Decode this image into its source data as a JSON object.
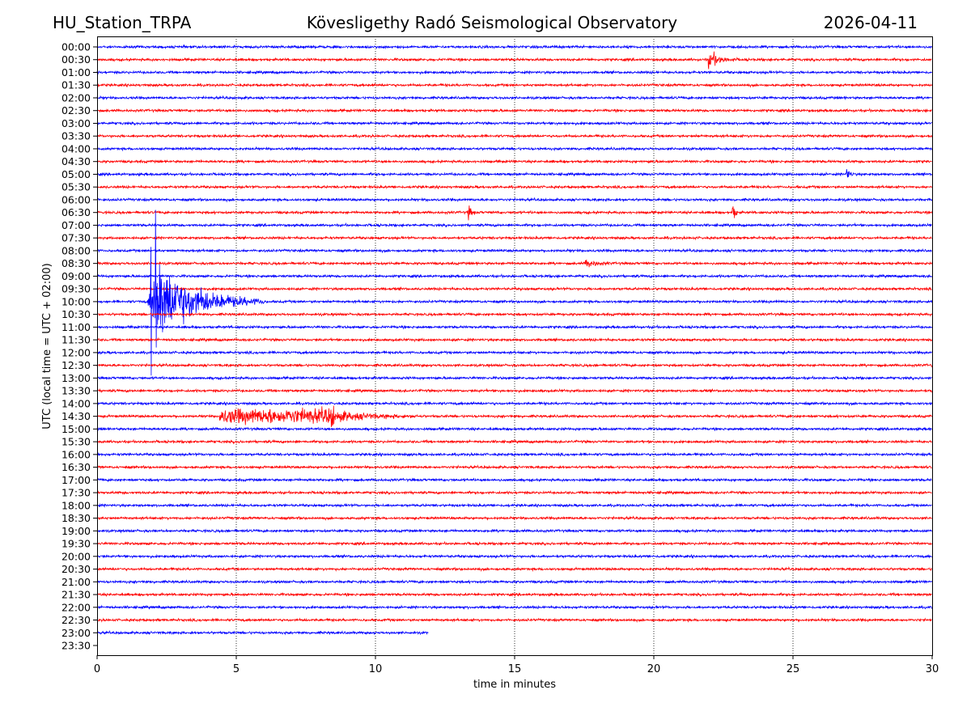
{
  "header": {
    "station": "HU_Station_TRPA",
    "observatory": "Kövesligethy Radó Seismological Observatory",
    "date": "2026-04-11"
  },
  "chart_data": {
    "type": "line",
    "subtype": "helicorder",
    "title": "Kövesligethy Radó Seismological Observatory",
    "xlabel": "time in minutes",
    "ylabel": "UTC (local time = UTC + 02:00)",
    "xlim": [
      0,
      30
    ],
    "xticks": [
      "0",
      "5",
      "10",
      "15",
      "20",
      "25",
      "30"
    ],
    "grid": "vertical dotted at every 5 minutes",
    "colors": [
      "#0000ff",
      "#ff0000"
    ],
    "rows": [
      "00:00",
      "00:30",
      "01:00",
      "01:30",
      "02:00",
      "02:30",
      "03:00",
      "03:30",
      "04:00",
      "04:30",
      "05:00",
      "05:30",
      "06:00",
      "06:30",
      "07:00",
      "07:30",
      "08:00",
      "08:30",
      "09:00",
      "09:30",
      "10:00",
      "10:30",
      "11:00",
      "11:30",
      "12:00",
      "12:30",
      "13:00",
      "13:30",
      "14:00",
      "14:30",
      "15:00",
      "15:30",
      "16:00",
      "16:30",
      "17:00",
      "17:30",
      "18:00",
      "18:30",
      "19:00",
      "19:30",
      "20:00",
      "20:30",
      "21:00",
      "21:30",
      "22:00",
      "22:30",
      "23:00",
      "23:30"
    ],
    "last_row_end_min": 11.9,
    "last_data_row": "23:00",
    "events": [
      {
        "row": "00:30",
        "start_min": 21.9,
        "end_min": 23.0,
        "amplitude": 0.5
      },
      {
        "row": "05:00",
        "start_min": 26.9,
        "end_min": 27.2,
        "amplitude": 0.5
      },
      {
        "row": "06:30",
        "start_min": 13.3,
        "end_min": 13.6,
        "amplitude": 0.6
      },
      {
        "row": "06:30",
        "start_min": 22.8,
        "end_min": 23.1,
        "amplitude": 0.6
      },
      {
        "row": "08:30",
        "start_min": 17.5,
        "end_min": 18.5,
        "amplitude": 0.25
      },
      {
        "row": "10:00",
        "start_min": 1.8,
        "end_min": 6.0,
        "amplitude": 2.5,
        "peak_up_rows": 7.2,
        "peak_down_rows": 5.8
      },
      {
        "row": "14:30",
        "start_min": 4.4,
        "end_min": 11.5,
        "amplitude": 0.8
      }
    ]
  }
}
